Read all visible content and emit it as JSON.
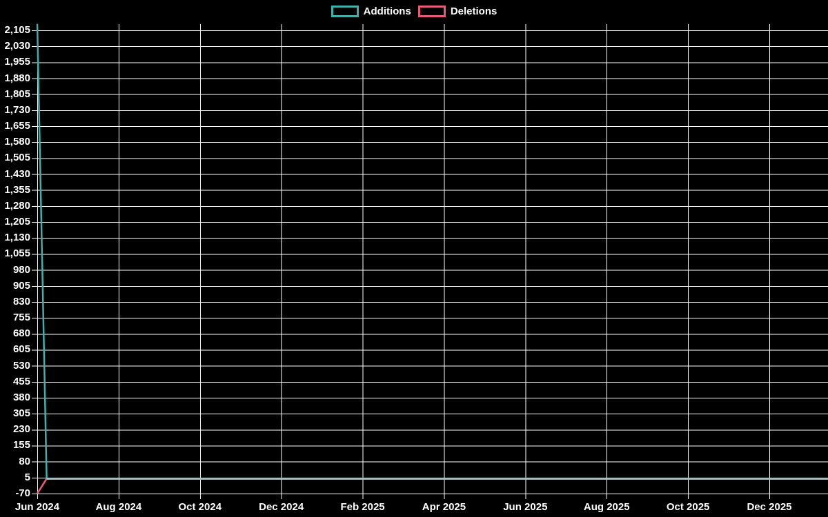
{
  "colors": {
    "background": "#000000",
    "grid": "#ffffff",
    "text": "#ffffff",
    "additions": "#41b0aa",
    "deletions": "#eb5a75",
    "overlap_line": "#a5bfc3"
  },
  "legend": {
    "position": "top-center",
    "items": [
      {
        "label": "Additions",
        "color": "#41b0aa"
      },
      {
        "label": "Deletions",
        "color": "#eb5a75"
      }
    ]
  },
  "chart_data": {
    "type": "line",
    "title": "",
    "xlabel": "",
    "ylabel": "",
    "grid": true,
    "legend_position": "top-center",
    "x_axis": {
      "start": "Jun 2024",
      "end": "Dec 2025",
      "tick_interval_months": 2,
      "tick_labels": [
        "Jun 2024",
        "Aug 2024",
        "Oct 2024",
        "Dec 2024",
        "Feb 2025",
        "Apr 2025",
        "Jun 2025",
        "Aug 2025",
        "Oct 2025",
        "Dec 2025"
      ]
    },
    "y_axis": {
      "min": -70,
      "max": 2105,
      "step": 75,
      "tick_labels": [
        "2,105",
        "2,030",
        "1,955",
        "1,880",
        "1,805",
        "1,730",
        "1,655",
        "1,580",
        "1,505",
        "1,430",
        "1,355",
        "1,280",
        "1,205",
        "1,130",
        "1,055",
        "980",
        "905",
        "830",
        "755",
        "680",
        "605",
        "530",
        "455",
        "380",
        "305",
        "230",
        "155",
        "80",
        "5",
        "-70"
      ]
    },
    "series": [
      {
        "name": "Additions",
        "color": "#41b0aa",
        "points_month_offset_value": [
          [
            0,
            2135
          ],
          [
            0.23,
            0
          ],
          [
            19.44,
            0
          ]
        ],
        "note": "spike ~2,135 in first week of Jun 2024, then flat at ~0 through Dec 2025"
      },
      {
        "name": "Deletions",
        "color": "#eb5a75",
        "points_month_offset_value": [
          [
            0,
            -70
          ],
          [
            0.23,
            0
          ],
          [
            19.44,
            0
          ]
        ],
        "note": "-70 in first week of Jun 2024, then flat at ~0 through Dec 2025"
      }
    ],
    "overlap_segment": {
      "description": "Additions and Deletions overlap at ~0 from week 2 onward; rendered as a muted gray-teal line",
      "color": "#a5bfc3",
      "points_month_offset_value": [
        [
          0.23,
          0
        ],
        [
          19.44,
          0
        ]
      ]
    }
  }
}
